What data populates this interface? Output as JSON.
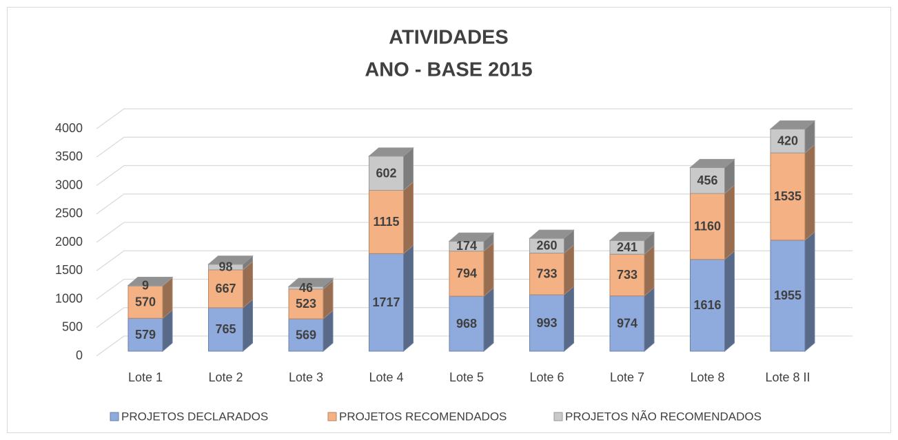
{
  "chart_data": {
    "type": "bar3d-stacked",
    "title": "ATIVIDADES",
    "subtitle": "ANO - BASE 2015",
    "categories": [
      "Lote 1",
      "Lote 2",
      "Lote 3",
      "Lote 4",
      "Lote 5",
      "Lote 6",
      "Lote 7",
      "Lote 8",
      "Lote 8 II"
    ],
    "series": [
      {
        "name": "PROJETOS DECLARADOS",
        "color": "#8faadc",
        "values": [
          579,
          765,
          569,
          1717,
          968,
          993,
          974,
          1616,
          1955
        ]
      },
      {
        "name": "PROJETOS RECOMENDADOS",
        "color": "#f4b183",
        "values": [
          570,
          667,
          523,
          1115,
          794,
          733,
          733,
          1160,
          1535
        ]
      },
      {
        "name": "PROJETOS NÃO RECOMENDADOS",
        "color": "#c9c9c9",
        "values": [
          9,
          98,
          46,
          602,
          174,
          260,
          241,
          456,
          420
        ]
      }
    ],
    "ylim": [
      0,
      4000
    ],
    "yticks": [
      0,
      500,
      1000,
      1500,
      2000,
      2500,
      3000,
      3500,
      4000
    ],
    "grid": true,
    "legend": "bottom"
  }
}
